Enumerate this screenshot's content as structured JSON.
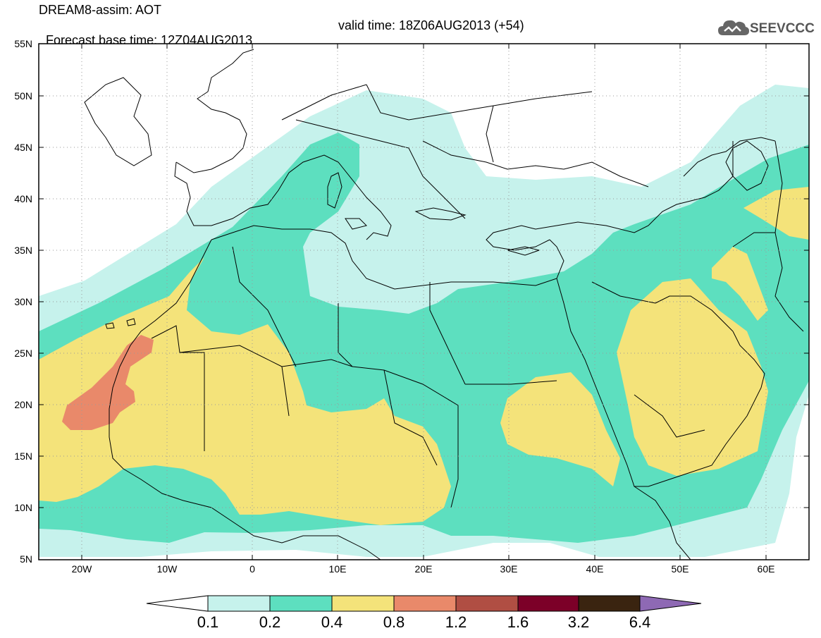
{
  "header": {
    "line1": "DREAM8-assim: AOT",
    "line2_base": "Forecast base time: 12Z04AUG2013",
    "line2_valid": "valid time: 18Z06AUG2013 (+54)",
    "logo_text": "SEEVCCC",
    "logo_icon": "cloud-icon"
  },
  "map": {
    "lon_range": [
      -25,
      65
    ],
    "lat_range": [
      5,
      55
    ],
    "lon_ticks": [
      "20W",
      "10W",
      "0",
      "10E",
      "20E",
      "30E",
      "40E",
      "50E",
      "60E"
    ],
    "lat_ticks": [
      "5N",
      "10N",
      "15N",
      "20N",
      "25N",
      "30N",
      "35N",
      "40N",
      "45N",
      "50N",
      "55N"
    ],
    "grid": "dotted"
  },
  "colorbar": {
    "labels": [
      "0.1",
      "0.2",
      "0.4",
      "0.8",
      "1.2",
      "1.6",
      "3.2",
      "6.4"
    ],
    "colors": [
      "#c6f2ec",
      "#5ddfbf",
      "#f4e37a",
      "#e9896a",
      "#b04e43",
      "#7c0028",
      "#3a2410",
      "#8e69b4"
    ],
    "under_color": "#ffffff",
    "over_color": "#8e69b4"
  },
  "colors": {
    "c01": "#c6f2ec",
    "c02": "#5ddfbf",
    "c04": "#f4e37a",
    "c08": "#e9896a",
    "land_border": "#000000"
  }
}
